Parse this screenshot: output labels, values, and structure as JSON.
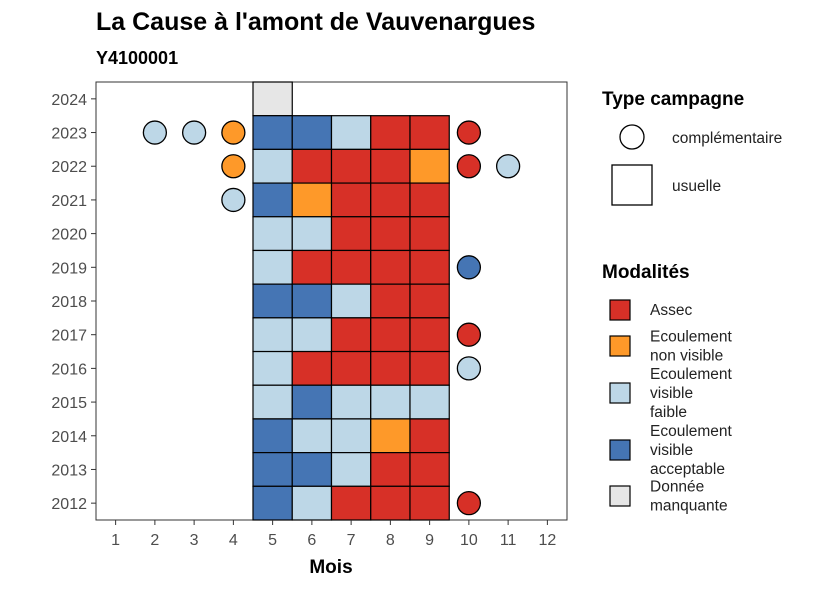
{
  "chart_data": {
    "type": "heatmap",
    "title": "La Cause à l'amont de Vauvenargues",
    "subtitle": "Y4100001",
    "xlabel": "Mois",
    "ylabel": "",
    "x_ticks": [
      "1",
      "2",
      "3",
      "4",
      "5",
      "6",
      "7",
      "8",
      "9",
      "10",
      "11",
      "12"
    ],
    "y_ticks": [
      "2012",
      "2013",
      "2014",
      "2015",
      "2016",
      "2017",
      "2018",
      "2019",
      "2020",
      "2021",
      "2022",
      "2023",
      "2024"
    ],
    "xlim": [
      0.5,
      12.5
    ],
    "ylim": [
      2011.5,
      2024.5
    ],
    "grid": false,
    "legend_placement": "right",
    "colors": {
      "Assec": "#d73027",
      "Ecoulement non visible": "#fe9929",
      "Ecoulement visible faible": "#bdd7e7",
      "Ecoulement visible acceptable": "#4575b4",
      "Donnée manquante": "#e6e6e6"
    },
    "legend_type": {
      "title": "Type campagne",
      "entries": [
        {
          "label": "complémentaire",
          "shape": "circle"
        },
        {
          "label": "usuelle",
          "shape": "square"
        }
      ]
    },
    "legend_modalites": {
      "title": "Modalités",
      "entries": [
        {
          "key": "Assec",
          "lines": [
            "Assec"
          ]
        },
        {
          "key": "Ecoulement non visible",
          "lines": [
            "Ecoulement",
            "non visible"
          ]
        },
        {
          "key": "Ecoulement visible faible",
          "lines": [
            "Ecoulement",
            "visible",
            "faible"
          ]
        },
        {
          "key": "Ecoulement visible acceptable",
          "lines": [
            "Ecoulement",
            "visible",
            "acceptable"
          ]
        },
        {
          "key": "Donnée manquante",
          "lines": [
            "Donnée",
            "manquante"
          ]
        }
      ]
    },
    "usuelle": [
      {
        "year": 2024,
        "month": 5,
        "value": "Donnée manquante"
      },
      {
        "year": 2023,
        "month": 5,
        "value": "Ecoulement visible acceptable"
      },
      {
        "year": 2023,
        "month": 6,
        "value": "Ecoulement visible acceptable"
      },
      {
        "year": 2023,
        "month": 7,
        "value": "Ecoulement visible faible"
      },
      {
        "year": 2023,
        "month": 8,
        "value": "Assec"
      },
      {
        "year": 2023,
        "month": 9,
        "value": "Assec"
      },
      {
        "year": 2022,
        "month": 5,
        "value": "Ecoulement visible faible"
      },
      {
        "year": 2022,
        "month": 6,
        "value": "Assec"
      },
      {
        "year": 2022,
        "month": 7,
        "value": "Assec"
      },
      {
        "year": 2022,
        "month": 8,
        "value": "Assec"
      },
      {
        "year": 2022,
        "month": 9,
        "value": "Ecoulement non visible"
      },
      {
        "year": 2021,
        "month": 5,
        "value": "Ecoulement visible acceptable"
      },
      {
        "year": 2021,
        "month": 6,
        "value": "Ecoulement non visible"
      },
      {
        "year": 2021,
        "month": 7,
        "value": "Assec"
      },
      {
        "year": 2021,
        "month": 8,
        "value": "Assec"
      },
      {
        "year": 2021,
        "month": 9,
        "value": "Assec"
      },
      {
        "year": 2020,
        "month": 5,
        "value": "Ecoulement visible faible"
      },
      {
        "year": 2020,
        "month": 6,
        "value": "Ecoulement visible faible"
      },
      {
        "year": 2020,
        "month": 7,
        "value": "Assec"
      },
      {
        "year": 2020,
        "month": 8,
        "value": "Assec"
      },
      {
        "year": 2020,
        "month": 9,
        "value": "Assec"
      },
      {
        "year": 2019,
        "month": 5,
        "value": "Ecoulement visible faible"
      },
      {
        "year": 2019,
        "month": 6,
        "value": "Assec"
      },
      {
        "year": 2019,
        "month": 7,
        "value": "Assec"
      },
      {
        "year": 2019,
        "month": 8,
        "value": "Assec"
      },
      {
        "year": 2019,
        "month": 9,
        "value": "Assec"
      },
      {
        "year": 2018,
        "month": 5,
        "value": "Ecoulement visible acceptable"
      },
      {
        "year": 2018,
        "month": 6,
        "value": "Ecoulement visible acceptable"
      },
      {
        "year": 2018,
        "month": 7,
        "value": "Ecoulement visible faible"
      },
      {
        "year": 2018,
        "month": 8,
        "value": "Assec"
      },
      {
        "year": 2018,
        "month": 9,
        "value": "Assec"
      },
      {
        "year": 2017,
        "month": 5,
        "value": "Ecoulement visible faible"
      },
      {
        "year": 2017,
        "month": 6,
        "value": "Ecoulement visible faible"
      },
      {
        "year": 2017,
        "month": 7,
        "value": "Assec"
      },
      {
        "year": 2017,
        "month": 8,
        "value": "Assec"
      },
      {
        "year": 2017,
        "month": 9,
        "value": "Assec"
      },
      {
        "year": 2016,
        "month": 5,
        "value": "Ecoulement visible faible"
      },
      {
        "year": 2016,
        "month": 6,
        "value": "Assec"
      },
      {
        "year": 2016,
        "month": 7,
        "value": "Assec"
      },
      {
        "year": 2016,
        "month": 8,
        "value": "Assec"
      },
      {
        "year": 2016,
        "month": 9,
        "value": "Assec"
      },
      {
        "year": 2015,
        "month": 5,
        "value": "Ecoulement visible faible"
      },
      {
        "year": 2015,
        "month": 6,
        "value": "Ecoulement visible acceptable"
      },
      {
        "year": 2015,
        "month": 7,
        "value": "Ecoulement visible faible"
      },
      {
        "year": 2015,
        "month": 8,
        "value": "Ecoulement visible faible"
      },
      {
        "year": 2015,
        "month": 9,
        "value": "Ecoulement visible faible"
      },
      {
        "year": 2014,
        "month": 5,
        "value": "Ecoulement visible acceptable"
      },
      {
        "year": 2014,
        "month": 6,
        "value": "Ecoulement visible faible"
      },
      {
        "year": 2014,
        "month": 7,
        "value": "Ecoulement visible faible"
      },
      {
        "year": 2014,
        "month": 8,
        "value": "Ecoulement non visible"
      },
      {
        "year": 2014,
        "month": 9,
        "value": "Assec"
      },
      {
        "year": 2013,
        "month": 5,
        "value": "Ecoulement visible acceptable"
      },
      {
        "year": 2013,
        "month": 6,
        "value": "Ecoulement visible acceptable"
      },
      {
        "year": 2013,
        "month": 7,
        "value": "Ecoulement visible faible"
      },
      {
        "year": 2013,
        "month": 8,
        "value": "Assec"
      },
      {
        "year": 2013,
        "month": 9,
        "value": "Assec"
      },
      {
        "year": 2012,
        "month": 5,
        "value": "Ecoulement visible acceptable"
      },
      {
        "year": 2012,
        "month": 6,
        "value": "Ecoulement visible faible"
      },
      {
        "year": 2012,
        "month": 7,
        "value": "Assec"
      },
      {
        "year": 2012,
        "month": 8,
        "value": "Assec"
      },
      {
        "year": 2012,
        "month": 9,
        "value": "Assec"
      }
    ],
    "complementaire": [
      {
        "year": 2023,
        "month": 2,
        "value": "Ecoulement visible faible"
      },
      {
        "year": 2023,
        "month": 3,
        "value": "Ecoulement visible faible"
      },
      {
        "year": 2023,
        "month": 4,
        "value": "Ecoulement non visible"
      },
      {
        "year": 2023,
        "month": 10,
        "value": "Assec"
      },
      {
        "year": 2022,
        "month": 4,
        "value": "Ecoulement non visible"
      },
      {
        "year": 2022,
        "month": 10,
        "value": "Assec"
      },
      {
        "year": 2022,
        "month": 11,
        "value": "Ecoulement visible faible"
      },
      {
        "year": 2021,
        "month": 4,
        "value": "Ecoulement visible faible"
      },
      {
        "year": 2019,
        "month": 10,
        "value": "Ecoulement visible acceptable"
      },
      {
        "year": 2017,
        "month": 10,
        "value": "Assec"
      },
      {
        "year": 2016,
        "month": 10,
        "value": "Ecoulement visible faible"
      },
      {
        "year": 2012,
        "month": 10,
        "value": "Assec"
      }
    ]
  }
}
